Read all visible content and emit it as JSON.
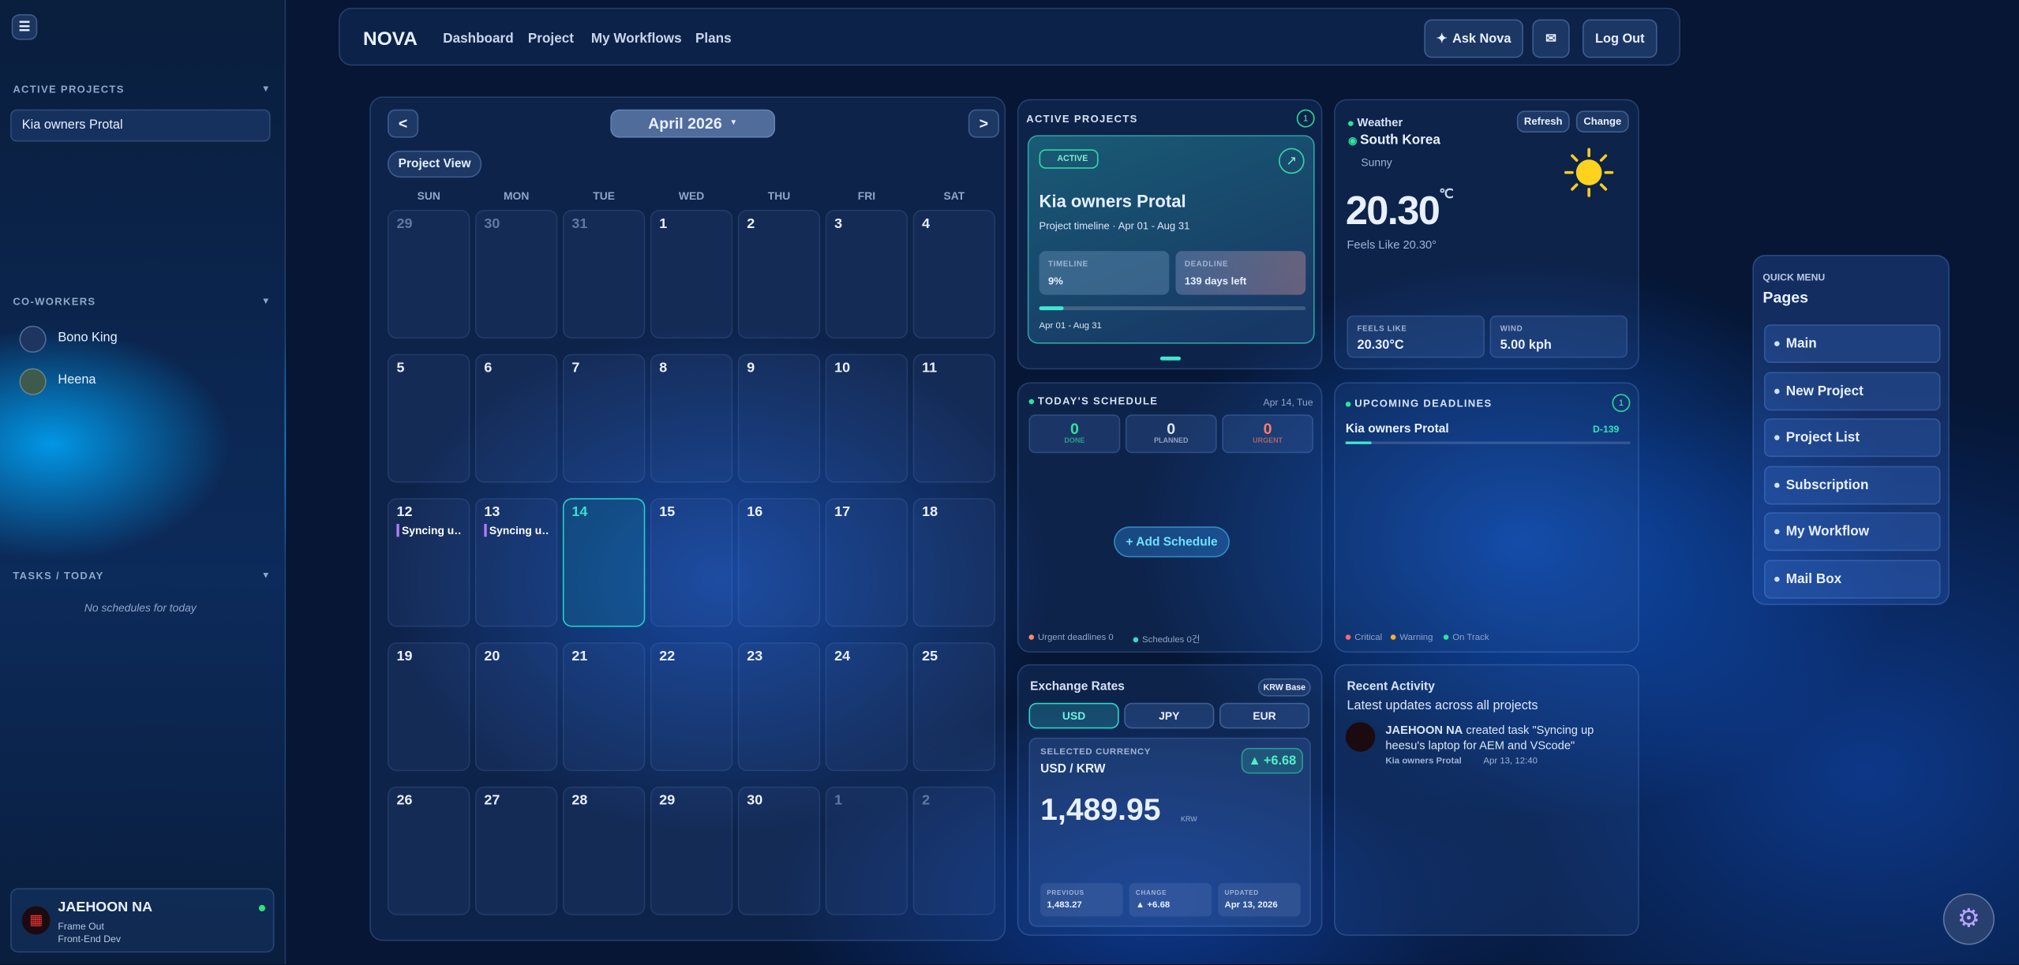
{
  "sidebar": {
    "active_projects": {
      "title": "ACTIVE PROJECTS",
      "items": [
        "Kia owners Protal"
      ]
    },
    "coworkers": {
      "title": "CO-WORKERS",
      "items": [
        "Bono King",
        "Heena"
      ]
    },
    "tasks": {
      "title": "TASKS / TODAY",
      "empty": "No schedules for today"
    },
    "user": {
      "name": "JAEHOON NA",
      "status": "Frame Out",
      "role": "Front-End Dev"
    }
  },
  "nav": {
    "brand": "NOVA",
    "links": [
      "Dashboard",
      "Project",
      "My Workflows",
      "Plans"
    ],
    "ask": "Ask Nova",
    "logout": "Log Out"
  },
  "calendar": {
    "prev": "<",
    "next": ">",
    "month": "April 2026",
    "view": "Project View",
    "today": 14,
    "weekdays": [
      "SUN",
      "MON",
      "TUE",
      "WED",
      "THU",
      "FRI",
      "SAT"
    ],
    "days": [
      {
        "day": 29
      },
      {
        "day": 30
      },
      {
        "day": 31
      },
      {
        "day": 1
      },
      {
        "day": 2
      },
      {
        "day": 3
      },
      {
        "day": 4
      },
      {
        "day": 5
      },
      {
        "day": 6
      },
      {
        "day": 7
      },
      {
        "day": 8
      },
      {
        "day": 9
      },
      {
        "day": 10
      },
      {
        "day": 11
      },
      {
        "day": 12,
        "events": [
          "Syncing u…"
        ]
      },
      {
        "day": 13,
        "events": [
          "Syncing u…"
        ]
      },
      {
        "day": 14
      },
      {
        "day": 15
      },
      {
        "day": 16
      },
      {
        "day": 17
      },
      {
        "day": 18
      },
      {
        "day": 19
      },
      {
        "day": 20
      },
      {
        "day": 21
      },
      {
        "day": 22
      },
      {
        "day": 23
      },
      {
        "day": 24
      },
      {
        "day": 25
      },
      {
        "day": 26
      },
      {
        "day": 27
      },
      {
        "day": 28
      },
      {
        "day": 29
      },
      {
        "day": 30
      },
      {
        "day": 1
      },
      {
        "day": 2
      }
    ]
  },
  "active_projects": {
    "title": "ACTIVE PROJECTS",
    "count": 1,
    "badge": "ACTIVE",
    "name": "Kia owners Protal",
    "timeline": "Project timeline · Apr 01 - Aug 31",
    "timeline_label": "TIMELINE",
    "progress": 9,
    "progress_label": "9%",
    "deadline_label": "DEADLINE",
    "deadline": "139 days left",
    "range": "Apr 01 - Aug 31"
  },
  "weather": {
    "label": "Weather",
    "location": "South Korea",
    "condition": "Sunny",
    "refresh": "Refresh",
    "change": "Change",
    "temp": "20.30",
    "unit": "℃",
    "feels": "Feels Like 20.30°",
    "stats": [
      {
        "label": "FEELS LIKE",
        "value": "20.30°C"
      },
      {
        "label": "WIND",
        "value": "5.00 kph"
      }
    ]
  },
  "schedule": {
    "title": "TODAY'S SCHEDULE",
    "date": "Apr 14, Tue",
    "stats": [
      {
        "value": 0,
        "label": "DONE"
      },
      {
        "value": 0,
        "label": "PLANNED"
      },
      {
        "value": 0,
        "label": "URGENT"
      }
    ],
    "add": "+ Add Schedule",
    "footer": [
      "Urgent deadlines 0",
      "Schedules 0건"
    ]
  },
  "deadlines": {
    "title": "UPCOMING DEADLINES",
    "count": 1,
    "items": [
      {
        "name": "Kia owners Protal",
        "due": "D-139"
      }
    ],
    "legend": [
      "Critical",
      "Warning",
      "On Track"
    ]
  },
  "exchange": {
    "title": "Exchange Rates",
    "base": "KRW Base",
    "tabs": [
      "USD",
      "JPY",
      "EUR"
    ],
    "selected_label": "SELECTED CURRENCY",
    "pair": "USD / KRW",
    "change": "+6.68",
    "rate": "1,489.95",
    "unit": "KRW",
    "details": [
      {
        "label": "PREVIOUS",
        "value": "1,483.27"
      },
      {
        "label": "CHANGE",
        "value": "▲ +6.68"
      },
      {
        "label": "UPDATED",
        "value": "Apr 13, 2026"
      }
    ]
  },
  "activity": {
    "title": "Recent Activity",
    "subtitle": "Latest updates across all projects",
    "items": [
      {
        "actor": "JAEHOON NA",
        "text": "created task \"Syncing up heesu's laptop for AEM and VScode\"",
        "project": "Kia owners Protal",
        "time": "Apr 13, 12:40"
      }
    ]
  },
  "quick_menu": {
    "label": "QUICK MENU",
    "title": "Pages",
    "items": [
      "Main",
      "New Project",
      "Project List",
      "Subscription",
      "My Workflow",
      "Mail Box"
    ]
  }
}
